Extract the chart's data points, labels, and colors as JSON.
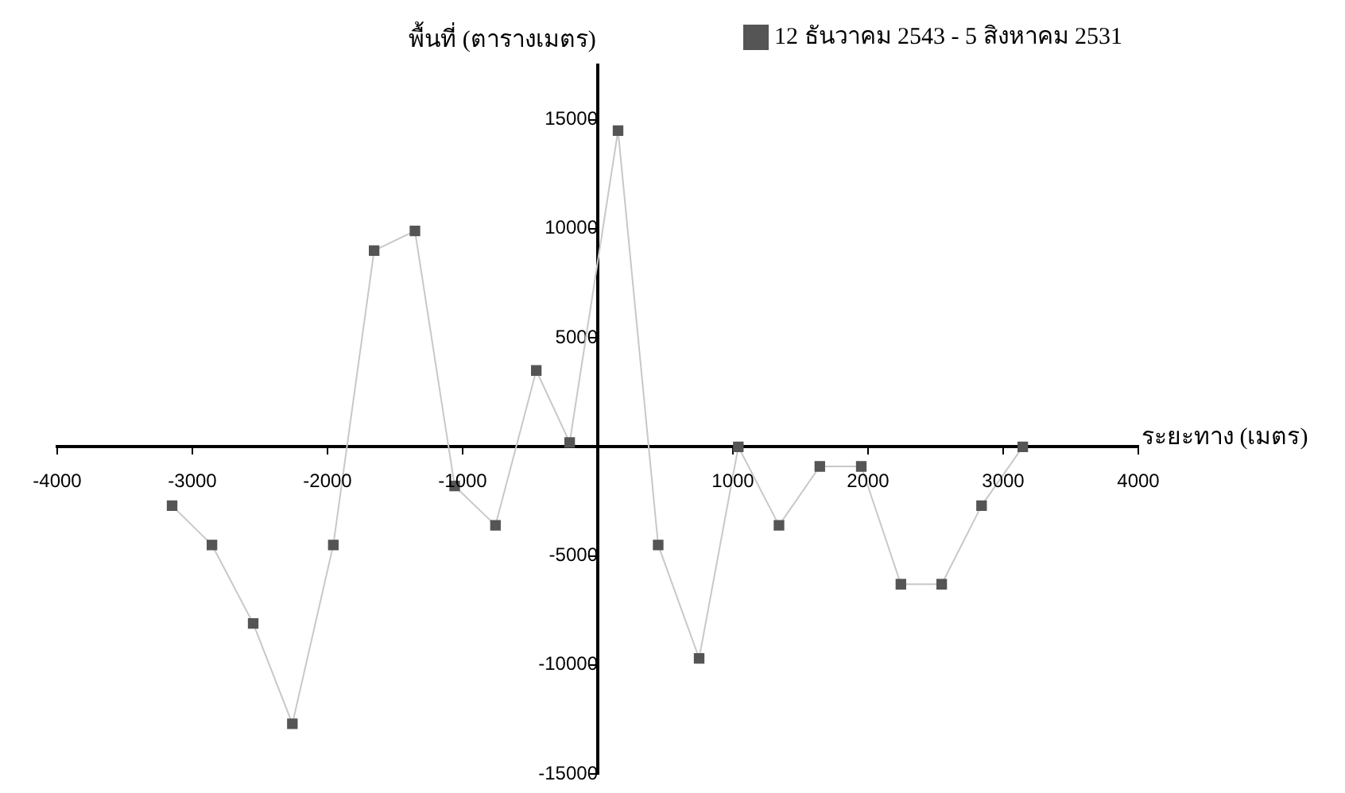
{
  "chart_data": {
    "type": "line",
    "xlabel": "ระยะทาง (เมตร)",
    "ylabel": "พื้นที่ (ตารางเมตร)",
    "x": [
      -3150,
      -2855,
      -2550,
      -2260,
      -1957,
      -1655,
      -1353,
      -1059,
      -757,
      -455,
      -208,
      150,
      447,
      750,
      1040,
      1341,
      1643,
      1950,
      2243,
      2545,
      2840,
      3145
    ],
    "series": [
      {
        "name": "12 ธันวาคม 2543 - 5 สิงหาคม 2531",
        "color": "#555555",
        "values": [
          -2700,
          -4500,
          -8100,
          -12700,
          -4500,
          9000,
          9900,
          -1800,
          -3600,
          3500,
          200,
          14500,
          -4500,
          -9700,
          0,
          -3600,
          -900,
          -900,
          -6300,
          -6300,
          -2700,
          0
        ]
      }
    ],
    "xlim": [
      -4000,
      4000
    ],
    "xticks": [
      -4000,
      -3000,
      -2000,
      -1000,
      1000,
      2000,
      3000,
      4000
    ],
    "ylim": [
      -15000,
      17500
    ],
    "yticks": [
      -15000,
      -10000,
      -5000,
      {
        "value": 0,
        "label": null
      },
      5000,
      10000,
      15000
    ],
    "grid": false,
    "legend": "top right",
    "marker": "square",
    "line_style": "solid"
  }
}
